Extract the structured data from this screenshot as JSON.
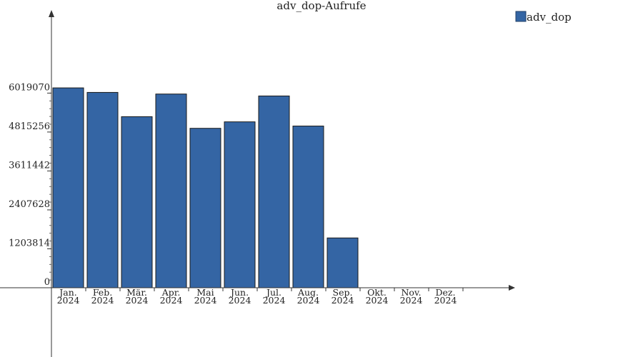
{
  "chart_data": {
    "type": "bar",
    "title": "adv_dop-Aufrufe",
    "xlabel": "",
    "ylabel": "",
    "categories": [
      [
        "Jan.",
        "2024"
      ],
      [
        "Feb.",
        "2024"
      ],
      [
        "Mär.",
        "2024"
      ],
      [
        "Apr.",
        "2024"
      ],
      [
        "Mai",
        "2024"
      ],
      [
        "Jun.",
        "2024"
      ],
      [
        "Jul.",
        "2024"
      ],
      [
        "Aug.",
        "2024"
      ],
      [
        "Sep.",
        "2024"
      ],
      [
        "Okt.",
        "2024"
      ],
      [
        "Nov.",
        "2024"
      ],
      [
        "Dez.",
        "2024"
      ]
    ],
    "series": [
      {
        "name": "adv_dop",
        "color": "#3465a4",
        "values": [
          6180000,
          6040000,
          5290000,
          5990000,
          4930000,
          5130000,
          5930000,
          5000000,
          1540000,
          0,
          0,
          0
        ]
      }
    ],
    "yticks": [
      0,
      1203814,
      2407628,
      3611442,
      4815256,
      6019070
    ],
    "ylim": [
      0,
      8500000
    ],
    "grid": false,
    "legend": "top-right"
  }
}
